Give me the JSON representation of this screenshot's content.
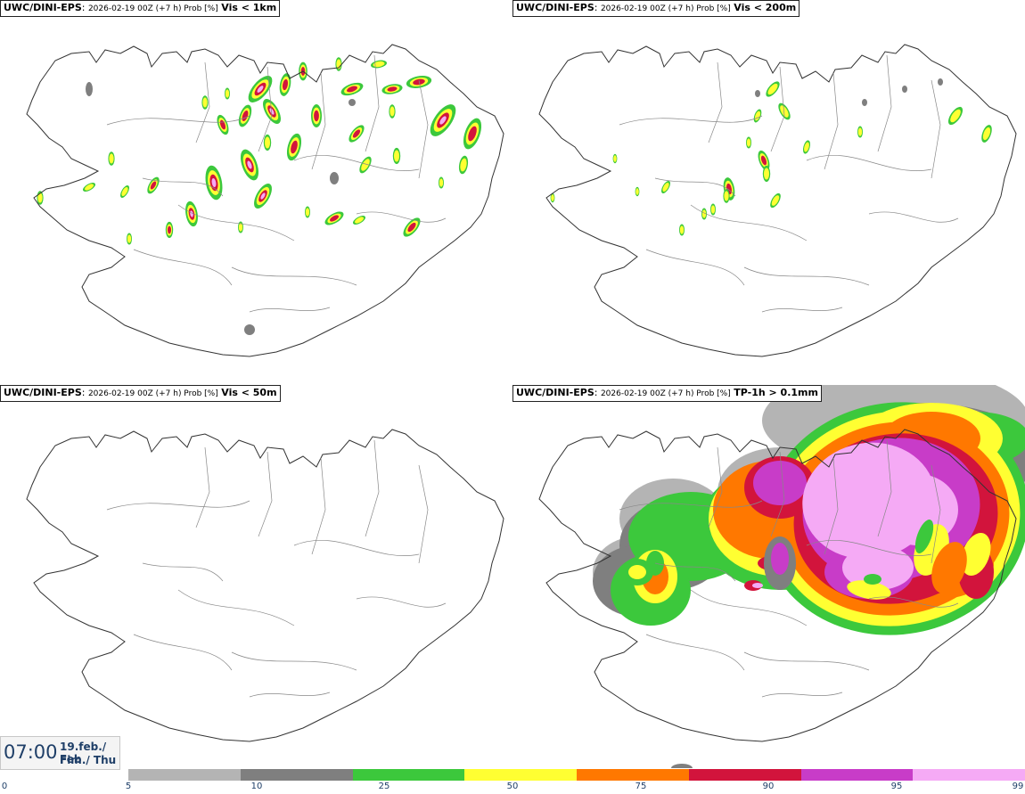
{
  "panels": [
    {
      "model": "UWC/DINI-EPS",
      "meta": "2026-02-19 00Z (+7 h) Prob [%]",
      "field": "Vis < 1km"
    },
    {
      "model": "UWC/DINI-EPS",
      "meta": "2026-02-19 00Z (+7 h) Prob [%]",
      "field": "Vis < 200m"
    },
    {
      "model": "UWC/DINI-EPS",
      "meta": "2026-02-19 00Z (+7 h) Prob [%]",
      "field": "Vis < 50m"
    },
    {
      "model": "UWC/DINI-EPS",
      "meta": "2026-02-19 00Z (+7 h) Prob [%]",
      "field": "TP-1h > 0.1mm"
    }
  ],
  "time": {
    "clock": "07:00",
    "date": "19.feb./ Feb",
    "weekday": "Fim./ Thu"
  },
  "colorbar": {
    "ticks": [
      "0",
      "5",
      "10",
      "25",
      "50",
      "75",
      "90",
      "95",
      "99"
    ],
    "colors": [
      "#b4b4b4",
      "#7f7f7f",
      "#3cc83c",
      "#ffff32",
      "#ff7800",
      "#d2143c",
      "#c83cc8",
      "#f5aaf5"
    ]
  }
}
